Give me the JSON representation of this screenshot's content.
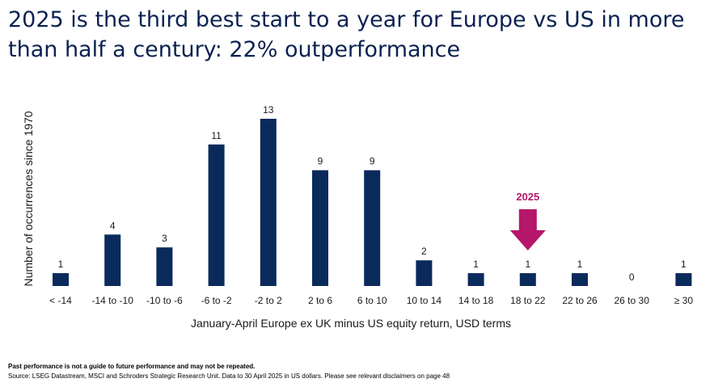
{
  "title": "2025 is the third best start to a year for Europe vs US in more than half a century: 22% outperformance",
  "chart_data": {
    "type": "bar",
    "categories": [
      "< -14",
      "-14 to -10",
      "-10 to -6",
      "-6 to -2",
      "-2 to 2",
      "2 to 6",
      "6 to 10",
      "10 to 14",
      "14 to 18",
      "18 to 22",
      "22 to 26",
      "26 to 30",
      "≥ 30"
    ],
    "values": [
      1,
      4,
      3,
      11,
      13,
      9,
      9,
      2,
      1,
      1,
      1,
      0,
      1
    ],
    "xlabel": "January-April Europe ex UK minus US equity return, USD terms",
    "ylabel": "Number of occurrences since 1970",
    "ylim": [
      0,
      13
    ],
    "grid": false,
    "bar_color": "#0b2a5c",
    "annotation": {
      "text": "2025",
      "category": "18 to 22",
      "color": "#b5176a"
    }
  },
  "footer": {
    "disclaimer": "Past performance is not a guide to future performance and may not be repeated.",
    "source": "Source: LSEG Datastream, MSCI and Schroders Strategic Research Unit. Data to 30 April 2025 in US dollars. Please see relevant disclaimers on page 48"
  }
}
